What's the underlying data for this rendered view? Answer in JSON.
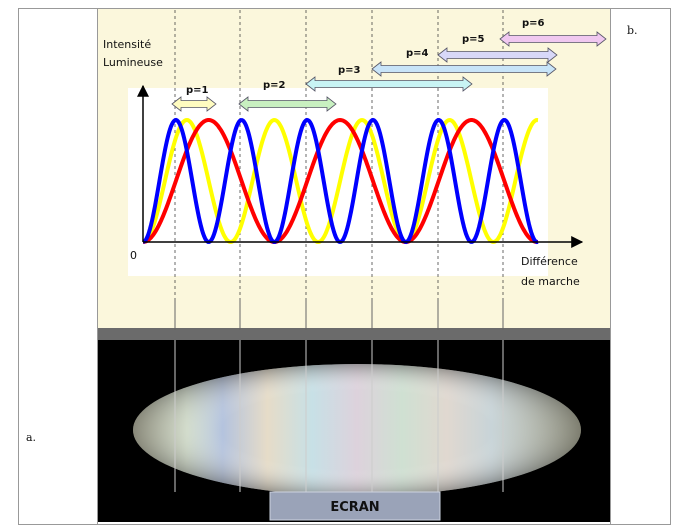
{
  "panels": {
    "a": "a.",
    "b": "b."
  },
  "figure": {
    "y_axis_label": [
      "Intensité",
      "Lumineuse"
    ],
    "origin": "0",
    "x_axis_label": [
      "Différence",
      "de marche"
    ],
    "orders": [
      "p=1",
      "p=2",
      "p=3",
      "p=4",
      "p=5",
      "p=6"
    ],
    "screen": "ECRAN"
  }
}
